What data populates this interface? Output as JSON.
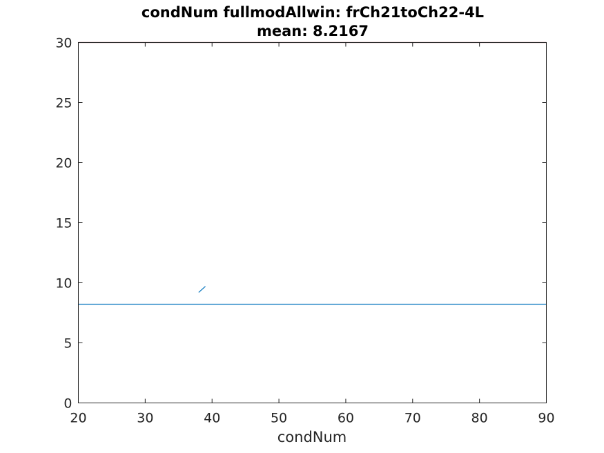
{
  "chart_data": {
    "type": "line",
    "title": "condNum fullmodAllwin: frCh21toCh22-4L",
    "subtitle": "mean: 8.2167",
    "xlabel": "condNum",
    "ylabel": "",
    "xlim": [
      20,
      90
    ],
    "ylim": [
      0,
      30
    ],
    "xticks": [
      20,
      30,
      40,
      50,
      60,
      70,
      80,
      90
    ],
    "yticks": [
      0,
      5,
      10,
      15,
      20,
      25,
      30
    ],
    "grid": false,
    "series": [
      {
        "color": "#0072BD",
        "x": [
          38,
          39
        ],
        "y": [
          9.2,
          9.7
        ]
      },
      {
        "color": "#0072BD",
        "x": [
          20,
          90
        ],
        "y": [
          8.2167,
          8.2167
        ]
      },
      {
        "color": "#A2142F",
        "x": [
          20,
          90
        ],
        "y": [
          30,
          30
        ]
      }
    ]
  }
}
